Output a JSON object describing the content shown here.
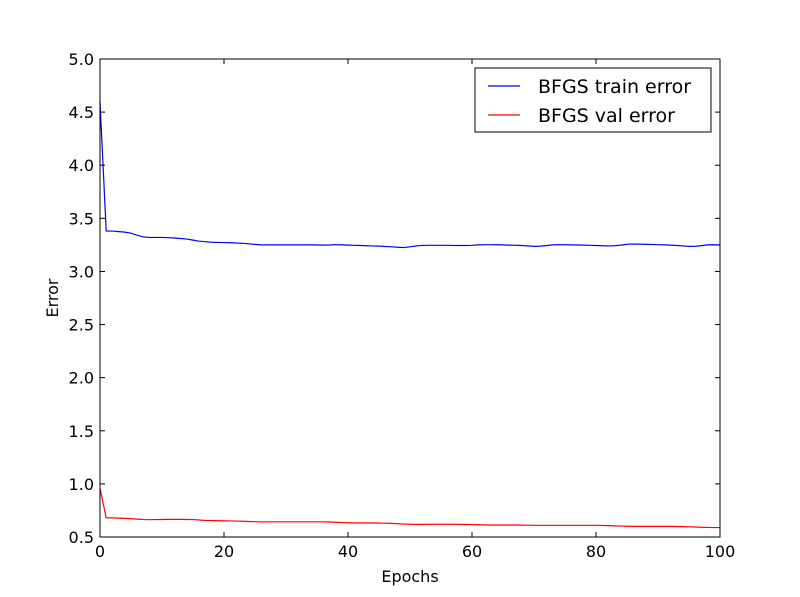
{
  "chart_data": {
    "type": "line",
    "xlabel": "Epochs",
    "ylabel": "Error",
    "xlim": [
      0,
      100
    ],
    "ylim": [
      0.5,
      5.0
    ],
    "x_ticks": [
      0,
      20,
      40,
      60,
      80,
      100
    ],
    "x_tick_labels": [
      "0",
      "20",
      "40",
      "60",
      "80",
      "100"
    ],
    "y_ticks": [
      0.5,
      1.0,
      1.5,
      2.0,
      2.5,
      3.0,
      3.5,
      4.0,
      4.5,
      5.0
    ],
    "y_tick_labels": [
      "0.5",
      "1.0",
      "1.5",
      "2.0",
      "2.5",
      "3.0",
      "3.5",
      "4.0",
      "4.5",
      "5.0"
    ],
    "grid": false,
    "legend_position": "top-right",
    "x": [
      0,
      1,
      2,
      3,
      4,
      5,
      6,
      7,
      8,
      9,
      10,
      11,
      12,
      13,
      14,
      15,
      16,
      17,
      18,
      19,
      20,
      21,
      22,
      23,
      24,
      25,
      26,
      27,
      28,
      29,
      30,
      31,
      32,
      33,
      34,
      35,
      36,
      37,
      38,
      39,
      40,
      41,
      42,
      43,
      44,
      45,
      46,
      47,
      48,
      49,
      50,
      51,
      52,
      53,
      54,
      55,
      56,
      57,
      58,
      59,
      60,
      61,
      62,
      63,
      64,
      65,
      66,
      67,
      68,
      69,
      70,
      71,
      72,
      73,
      74,
      75,
      76,
      77,
      78,
      79,
      80,
      81,
      82,
      83,
      84,
      85,
      86,
      87,
      88,
      89,
      90,
      91,
      92,
      93,
      94,
      95,
      96,
      97,
      98,
      99,
      100
    ],
    "series": [
      {
        "name": "BFGS train error",
        "color": "#0000ff",
        "values": [
          4.6,
          3.38,
          3.38,
          3.375,
          3.37,
          3.36,
          3.34,
          3.325,
          3.32,
          3.32,
          3.32,
          3.318,
          3.315,
          3.31,
          3.305,
          3.295,
          3.285,
          3.28,
          3.275,
          3.273,
          3.272,
          3.27,
          3.268,
          3.265,
          3.26,
          3.255,
          3.25,
          3.25,
          3.25,
          3.25,
          3.25,
          3.25,
          3.25,
          3.25,
          3.25,
          3.249,
          3.248,
          3.249,
          3.252,
          3.25,
          3.248,
          3.246,
          3.244,
          3.242,
          3.24,
          3.238,
          3.235,
          3.232,
          3.228,
          3.225,
          3.232,
          3.24,
          3.245,
          3.246,
          3.246,
          3.246,
          3.246,
          3.245,
          3.244,
          3.244,
          3.246,
          3.25,
          3.252,
          3.252,
          3.251,
          3.25,
          3.248,
          3.246,
          3.244,
          3.24,
          3.236,
          3.238,
          3.243,
          3.25,
          3.252,
          3.251,
          3.25,
          3.249,
          3.248,
          3.246,
          3.244,
          3.242,
          3.24,
          3.242,
          3.248,
          3.256,
          3.258,
          3.257,
          3.255,
          3.254,
          3.252,
          3.25,
          3.248,
          3.244,
          3.24,
          3.236,
          3.237,
          3.243,
          3.25,
          3.251,
          3.25
        ]
      },
      {
        "name": "BFGS val error",
        "color": "#ff0000",
        "values": [
          0.96,
          0.68,
          0.68,
          0.678,
          0.675,
          0.672,
          0.668,
          0.664,
          0.663,
          0.664,
          0.665,
          0.666,
          0.666,
          0.666,
          0.665,
          0.664,
          0.66,
          0.656,
          0.654,
          0.653,
          0.652,
          0.651,
          0.65,
          0.648,
          0.646,
          0.644,
          0.642,
          0.642,
          0.643,
          0.643,
          0.643,
          0.643,
          0.643,
          0.643,
          0.643,
          0.643,
          0.642,
          0.641,
          0.639,
          0.636,
          0.634,
          0.633,
          0.633,
          0.633,
          0.632,
          0.632,
          0.63,
          0.628,
          0.625,
          0.622,
          0.62,
          0.619,
          0.619,
          0.62,
          0.62,
          0.62,
          0.62,
          0.62,
          0.619,
          0.618,
          0.617,
          0.615,
          0.614,
          0.613,
          0.613,
          0.613,
          0.613,
          0.613,
          0.612,
          0.611,
          0.61,
          0.61,
          0.61,
          0.61,
          0.61,
          0.61,
          0.61,
          0.61,
          0.61,
          0.61,
          0.61,
          0.609,
          0.607,
          0.605,
          0.603,
          0.601,
          0.6,
          0.6,
          0.6,
          0.6,
          0.6,
          0.6,
          0.6,
          0.599,
          0.598,
          0.596,
          0.594,
          0.592,
          0.59,
          0.589,
          0.589
        ]
      }
    ]
  }
}
